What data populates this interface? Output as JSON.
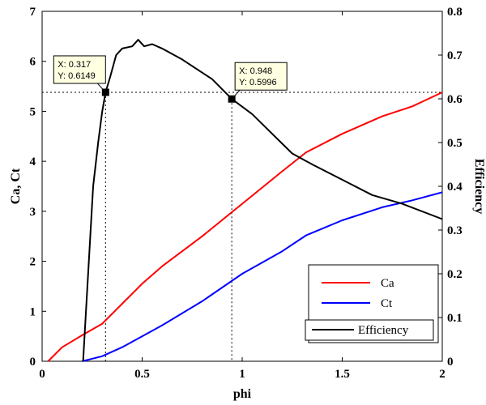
{
  "chart_data": {
    "type": "line",
    "xlabel": "phi",
    "ylabel_left": "Ca, Ct",
    "ylabel_right": "Efficiency",
    "xlim": [
      0,
      2
    ],
    "ylim_left": [
      0,
      7
    ],
    "ylim_right": [
      0,
      0.8
    ],
    "x_ticks": [
      "0",
      "0.5",
      "1",
      "1.5",
      "2"
    ],
    "y_left_ticks": [
      "0",
      "1",
      "2",
      "3",
      "4",
      "5",
      "6",
      "7"
    ],
    "y_right_ticks": [
      "0",
      "0.1",
      "0.2",
      "0.3",
      "0.4",
      "0.5",
      "0.6",
      "0.7",
      "0.8"
    ],
    "grid": false,
    "legend_position": "bottom-right",
    "series": [
      {
        "name": "Ca",
        "axis": "left",
        "color": "#ff0000",
        "x": [
          0.03,
          0.1,
          0.2,
          0.3,
          0.4,
          0.5,
          0.6,
          0.8,
          1.0,
          1.2,
          1.32,
          1.5,
          1.7,
          1.85,
          2.0
        ],
        "y": [
          0.0,
          0.28,
          0.52,
          0.75,
          1.15,
          1.55,
          1.9,
          2.5,
          3.15,
          3.8,
          4.18,
          4.55,
          4.9,
          5.1,
          5.38
        ]
      },
      {
        "name": "Ct",
        "axis": "left",
        "color": "#0000ff",
        "x": [
          0.2,
          0.3,
          0.4,
          0.6,
          0.8,
          1.0,
          1.2,
          1.32,
          1.5,
          1.7,
          1.85,
          2.0
        ],
        "y": [
          0.0,
          0.1,
          0.28,
          0.72,
          1.2,
          1.75,
          2.2,
          2.52,
          2.82,
          3.08,
          3.22,
          3.38
        ]
      },
      {
        "name": "Efficiency",
        "axis": "right",
        "color": "#000000",
        "x": [
          0.205,
          0.23,
          0.255,
          0.28,
          0.3,
          0.317,
          0.34,
          0.37,
          0.4,
          0.45,
          0.48,
          0.51,
          0.55,
          0.6,
          0.7,
          0.85,
          0.948,
          1.05,
          1.15,
          1.25,
          1.35,
          1.5,
          1.65,
          1.8,
          2.0
        ],
        "y": [
          0.0,
          0.2,
          0.4,
          0.5,
          0.57,
          0.6149,
          0.65,
          0.7,
          0.715,
          0.72,
          0.735,
          0.72,
          0.725,
          0.715,
          0.69,
          0.645,
          0.5996,
          0.565,
          0.52,
          0.475,
          0.45,
          0.415,
          0.38,
          0.36,
          0.325
        ]
      }
    ],
    "datatips": [
      {
        "series": "Efficiency",
        "x": 0.317,
        "y": 0.6149,
        "label_x": "X: 0.317",
        "label_y": "Y: 0.6149",
        "anchor": "left"
      },
      {
        "series": "Efficiency",
        "x": 0.948,
        "y": 0.5996,
        "label_x": "X: 0.948",
        "label_y": "Y: 0.5996",
        "anchor": "right"
      }
    ]
  }
}
